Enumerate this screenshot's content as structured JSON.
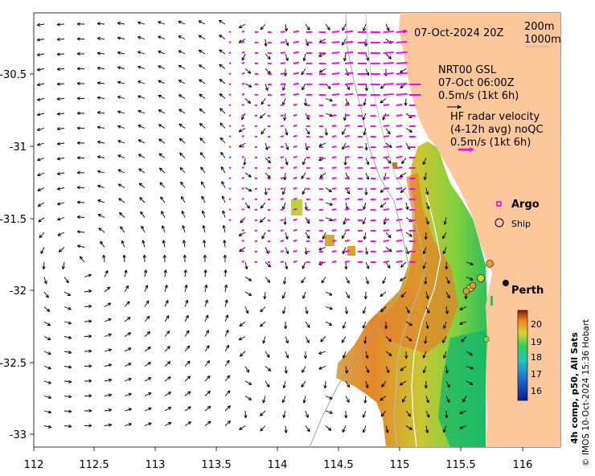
{
  "map": {
    "date_label": "07-Oct-2024 20Z",
    "bathy_labels": [
      "200m",
      "1000m"
    ],
    "model_label": {
      "line1": "NRT00 GSL",
      "line2": "07-Oct 06:00Z",
      "line3": "0.5m/s (1kt 6h)"
    },
    "radar_label": {
      "line1": "HF radar velocity",
      "line2": "(4-12h avg) noQC",
      "line3": "0.5m/s (1kt 6h)"
    },
    "legend": {
      "argo": "Argo",
      "ship": "Ship"
    },
    "city": "Perth",
    "colorbar": {
      "title": "4h comp, p50, All Sats",
      "ticks": [
        "20",
        "19",
        "18",
        "17",
        "16"
      ]
    },
    "credit": "© IMOS 10-Oct-2024 15:36 Hobart",
    "x_ticks": [
      "112",
      "112.5",
      "113",
      "113.5",
      "114",
      "114.5",
      "115",
      "115.5",
      "116"
    ],
    "y_ticks": [
      "-30.5",
      "-31",
      "-31.5",
      "-32",
      "-32.5",
      "-33"
    ],
    "colors": {
      "land": "#fcc89b",
      "model_arrow": "#000000",
      "radar_arrow": "#ff00ff",
      "bathy": "#999999"
    }
  }
}
